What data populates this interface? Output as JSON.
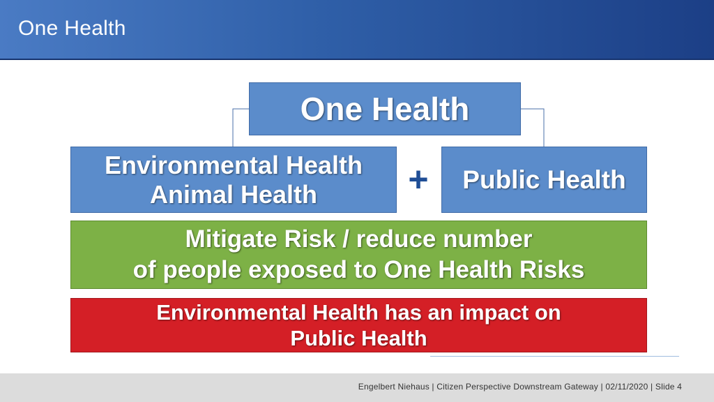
{
  "header": {
    "title": "One Health"
  },
  "diagram": {
    "top_box": "One Health",
    "left_box": [
      "Environmental Health",
      "Animal Health"
    ],
    "plus_symbol": "+",
    "right_box": "Public Health",
    "green_box": [
      "Mitigate Risk / reduce number",
      "of people exposed to One Health Risks"
    ],
    "red_box": [
      "Environmental Health has an impact on",
      "Public Health"
    ]
  },
  "footer": {
    "text": "Engelbert Niehaus | Citizen Perspective Downstream Gateway  | 02/11/2020 | Slide  4"
  },
  "colors": {
    "header_start": "#4a7bc4",
    "header_end": "#1c3f86",
    "box_blue": "#5b8ccb",
    "box_green": "#7db146",
    "box_red": "#d41f26",
    "plus": "#1f4e96"
  }
}
